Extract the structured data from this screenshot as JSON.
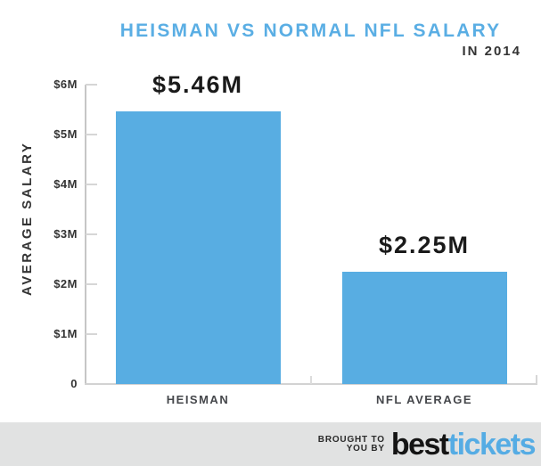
{
  "header": {
    "title": "HEISMAN VS NORMAL NFL SALARY",
    "subtitle": "IN 2014"
  },
  "chart_data": {
    "type": "bar",
    "title": "HEISMAN VS NORMAL NFL SALARY",
    "subtitle": "IN 2014",
    "categories": [
      "HEISMAN",
      "NFL AVERAGE"
    ],
    "values": [
      5.46,
      2.25
    ],
    "value_labels": [
      "$5.46M",
      "$2.25M"
    ],
    "unit": "million USD",
    "xlabel": "",
    "ylabel": "AVERAGE SALARY",
    "ylim": [
      0,
      6
    ],
    "y_ticks": [
      {
        "value": 0,
        "label": "0"
      },
      {
        "value": 1,
        "label": "$1M"
      },
      {
        "value": 2,
        "label": "$2M"
      },
      {
        "value": 3,
        "label": "$3M"
      },
      {
        "value": 4,
        "label": "$4M"
      },
      {
        "value": 5,
        "label": "$5M"
      },
      {
        "value": 6,
        "label": "$6M"
      }
    ],
    "grid": false,
    "legend": "none",
    "bar_color": "#58ADE2"
  },
  "footer": {
    "attribution_line1": "BROUGHT TO",
    "attribution_line2": "YOU BY",
    "brand_black": "best",
    "brand_blue": "tickets"
  },
  "colors": {
    "title_blue": "#5AAEE4",
    "bar_blue": "#58ADE2",
    "brand_blue": "#55ACE4",
    "dark_text": "#333333",
    "axis_gray": "#C9C9C9",
    "footer_bg": "#E1E2E2"
  }
}
